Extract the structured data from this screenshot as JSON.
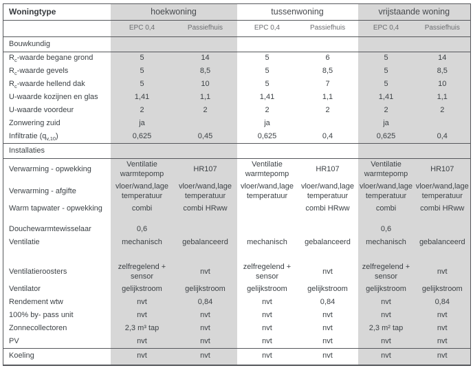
{
  "table": {
    "corner_label": "Woningtype",
    "groups": [
      {
        "label": "hoekwoning"
      },
      {
        "label": "tussenwoning"
      },
      {
        "label": "vrijstaande woning"
      }
    ],
    "subheaders": [
      "EPC 0,4",
      "Passiefhuis"
    ],
    "sections": [
      {
        "title": "Bouwkundig",
        "rows": [
          {
            "label": [
              {
                "t": "R"
              },
              {
                "t": "c",
                "s": 1
              },
              {
                "t": "-waarde begane grond"
              }
            ],
            "values": [
              "5",
              "14",
              "5",
              "6",
              "5",
              "14"
            ]
          },
          {
            "label": [
              {
                "t": "R"
              },
              {
                "t": "c",
                "s": 1
              },
              {
                "t": "-waarde gevels"
              }
            ],
            "values": [
              "5",
              "8,5",
              "5",
              "8,5",
              "5",
              "8,5"
            ]
          },
          {
            "label": [
              {
                "t": "R"
              },
              {
                "t": "c",
                "s": 1
              },
              {
                "t": "-waarde hellend dak"
              }
            ],
            "values": [
              "5",
              "10",
              "5",
              "7",
              "5",
              "10"
            ]
          },
          {
            "label": "U-waarde kozijnen en glas",
            "values": [
              "1,41",
              "1,1",
              "1,41",
              "1,1",
              "1,41",
              "1,1"
            ]
          },
          {
            "label": "U-waarde voordeur",
            "values": [
              "2",
              "2",
              "2",
              "2",
              "2",
              "2"
            ]
          },
          {
            "label": "Zonwering zuid",
            "values": [
              "ja",
              "",
              "ja",
              "",
              "ja",
              ""
            ]
          },
          {
            "label": [
              {
                "t": "Infiltratie (q"
              },
              {
                "t": "v,10",
                "s": 1
              },
              {
                "t": ")"
              }
            ],
            "values": [
              "0,625",
              "0,45",
              "0,625",
              "0,4",
              "0,625",
              "0,4"
            ]
          }
        ]
      },
      {
        "title": "Installaties",
        "rows": [
          {
            "label": "Verwarming - opwekking",
            "values": [
              "Ventilatie\nwarmtepomp",
              "HR107",
              "Ventilatie\nwarmtepomp",
              "HR107",
              "Ventilatie\nwarmtepomp",
              "HR107"
            ]
          },
          {
            "label": "Verwarming - afgifte",
            "values": [
              "vloer/wand,lage\ntemperatuur",
              "vloer/wand,lage\ntemperatuur",
              "vloer/wand,lage\ntemperatuur",
              "vloer/wand,lage\ntemperatuur",
              "vloer/wand,lage\ntemperatuur",
              "vloer/wand,lage\ntemperatuur"
            ]
          },
          {
            "label": "Warm tapwater - opwekking",
            "gap": "sm",
            "values": [
              "combi",
              "combi HRww",
              "",
              "combi HRww",
              "combi",
              "combi HRww"
            ]
          },
          {
            "label": "Douchewarmtewisselaar",
            "values": [
              "0,6",
              "",
              "",
              "",
              "0,6",
              ""
            ]
          },
          {
            "label": "Ventilatie",
            "gap": "lg",
            "values": [
              "mechanisch",
              "gebalanceerd",
              "mechanisch",
              "gebalanceerd",
              "mechanisch",
              "gebalanceerd"
            ]
          },
          {
            "label": "Ventilatieroosters",
            "values": [
              "zelfregelend +\nsensor",
              "nvt",
              "zelfregelend +\nsensor",
              "nvt",
              "zelfregelend +\nsensor",
              "nvt"
            ]
          },
          {
            "label": "Ventilator",
            "values": [
              "gelijkstroom",
              "gelijkstroom",
              "gelijkstroom",
              "gelijkstroom",
              "gelijkstroom",
              "gelijkstroom"
            ]
          },
          {
            "label": "Rendement wtw",
            "values": [
              "nvt",
              "0,84",
              "nvt",
              "0,84",
              "nvt",
              "0,84"
            ]
          },
          {
            "label": "100% by- pass unit",
            "values": [
              "nvt",
              "nvt",
              "nvt",
              "nvt",
              "nvt",
              "nvt"
            ]
          },
          {
            "label": "Zonnecollectoren",
            "values": [
              "2,3 m³ tap",
              "nvt",
              "nvt",
              "nvt",
              "2,3 m² tap",
              "nvt"
            ]
          },
          {
            "label": "PV",
            "values": [
              "nvt",
              "nvt",
              "nvt",
              "nvt",
              "nvt",
              "nvt"
            ]
          },
          {
            "label": "Koeling",
            "rule_above": true,
            "values": [
              "nvt",
              "nvt",
              "nvt",
              "nvt",
              "nvt",
              "nvt"
            ]
          }
        ]
      }
    ]
  }
}
